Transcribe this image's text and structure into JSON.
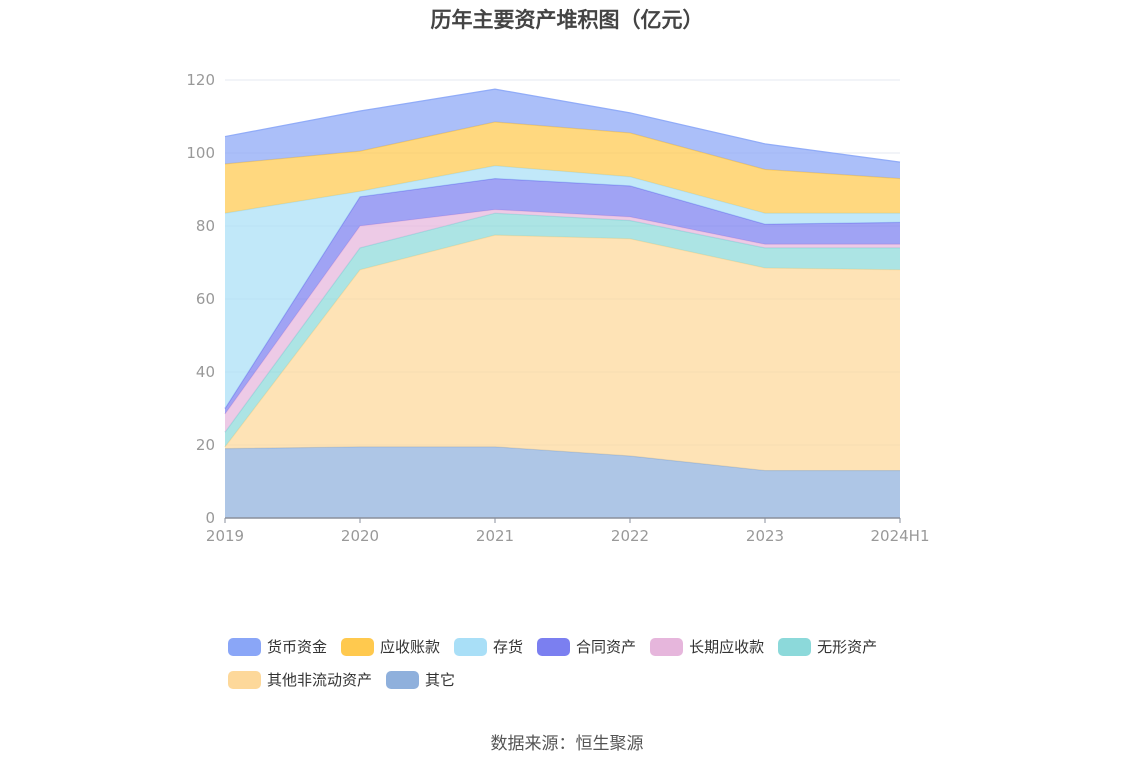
{
  "title": "历年主要资产堆积图（亿元）",
  "source": "数据来源：恒生聚源",
  "chart_data": {
    "type": "area",
    "stacked": true,
    "categories": [
      "2019",
      "2020",
      "2021",
      "2022",
      "2023",
      "2024H1"
    ],
    "ylim": [
      0,
      120
    ],
    "yticks": [
      0,
      20,
      40,
      60,
      80,
      100,
      120
    ],
    "grid": true,
    "legend_position": "bottom",
    "series": [
      {
        "name": "其它",
        "color": "#8fb0dc",
        "values": [
          19,
          19.5,
          19.5,
          17,
          13,
          13
        ]
      },
      {
        "name": "其他非流动资产",
        "color": "#fdd89a",
        "values": [
          0.5,
          48.5,
          58,
          59.5,
          55.5,
          55
        ]
      },
      {
        "name": "无形资产",
        "color": "#8cd9da",
        "values": [
          4,
          6,
          6,
          5,
          5.5,
          6
        ]
      },
      {
        "name": "长期应收款",
        "color": "#e6b6dc",
        "values": [
          5,
          6,
          1,
          1,
          1,
          1
        ]
      },
      {
        "name": "合同资产",
        "color": "#7b7ff0",
        "values": [
          1.5,
          8,
          8.5,
          8.5,
          5.5,
          6
        ]
      },
      {
        "name": "存货",
        "color": "#a9dff7",
        "values": [
          53.5,
          1.5,
          3.5,
          2.5,
          3,
          2.5
        ]
      },
      {
        "name": "应收账款",
        "color": "#ffc94e",
        "values": [
          13.5,
          11,
          12,
          12,
          12,
          9.5
        ]
      },
      {
        "name": "货币资金",
        "color": "#8aa6f7",
        "values": [
          7.5,
          11,
          9,
          5.5,
          7,
          4.5
        ]
      }
    ]
  },
  "legend": {
    "rows": [
      [
        {
          "label": "货币资金",
          "color": "#8aa6f7"
        },
        {
          "label": "应收账款",
          "color": "#ffc94e"
        },
        {
          "label": "存货",
          "color": "#a9dff7"
        },
        {
          "label": "合同资产",
          "color": "#7b7ff0"
        },
        {
          "label": "长期应收款",
          "color": "#e6b6dc"
        },
        {
          "label": "无形资产",
          "color": "#8cd9da"
        }
      ],
      [
        {
          "label": "其他非流动资产",
          "color": "#fdd89a"
        },
        {
          "label": "其它",
          "color": "#8fb0dc"
        }
      ]
    ]
  }
}
